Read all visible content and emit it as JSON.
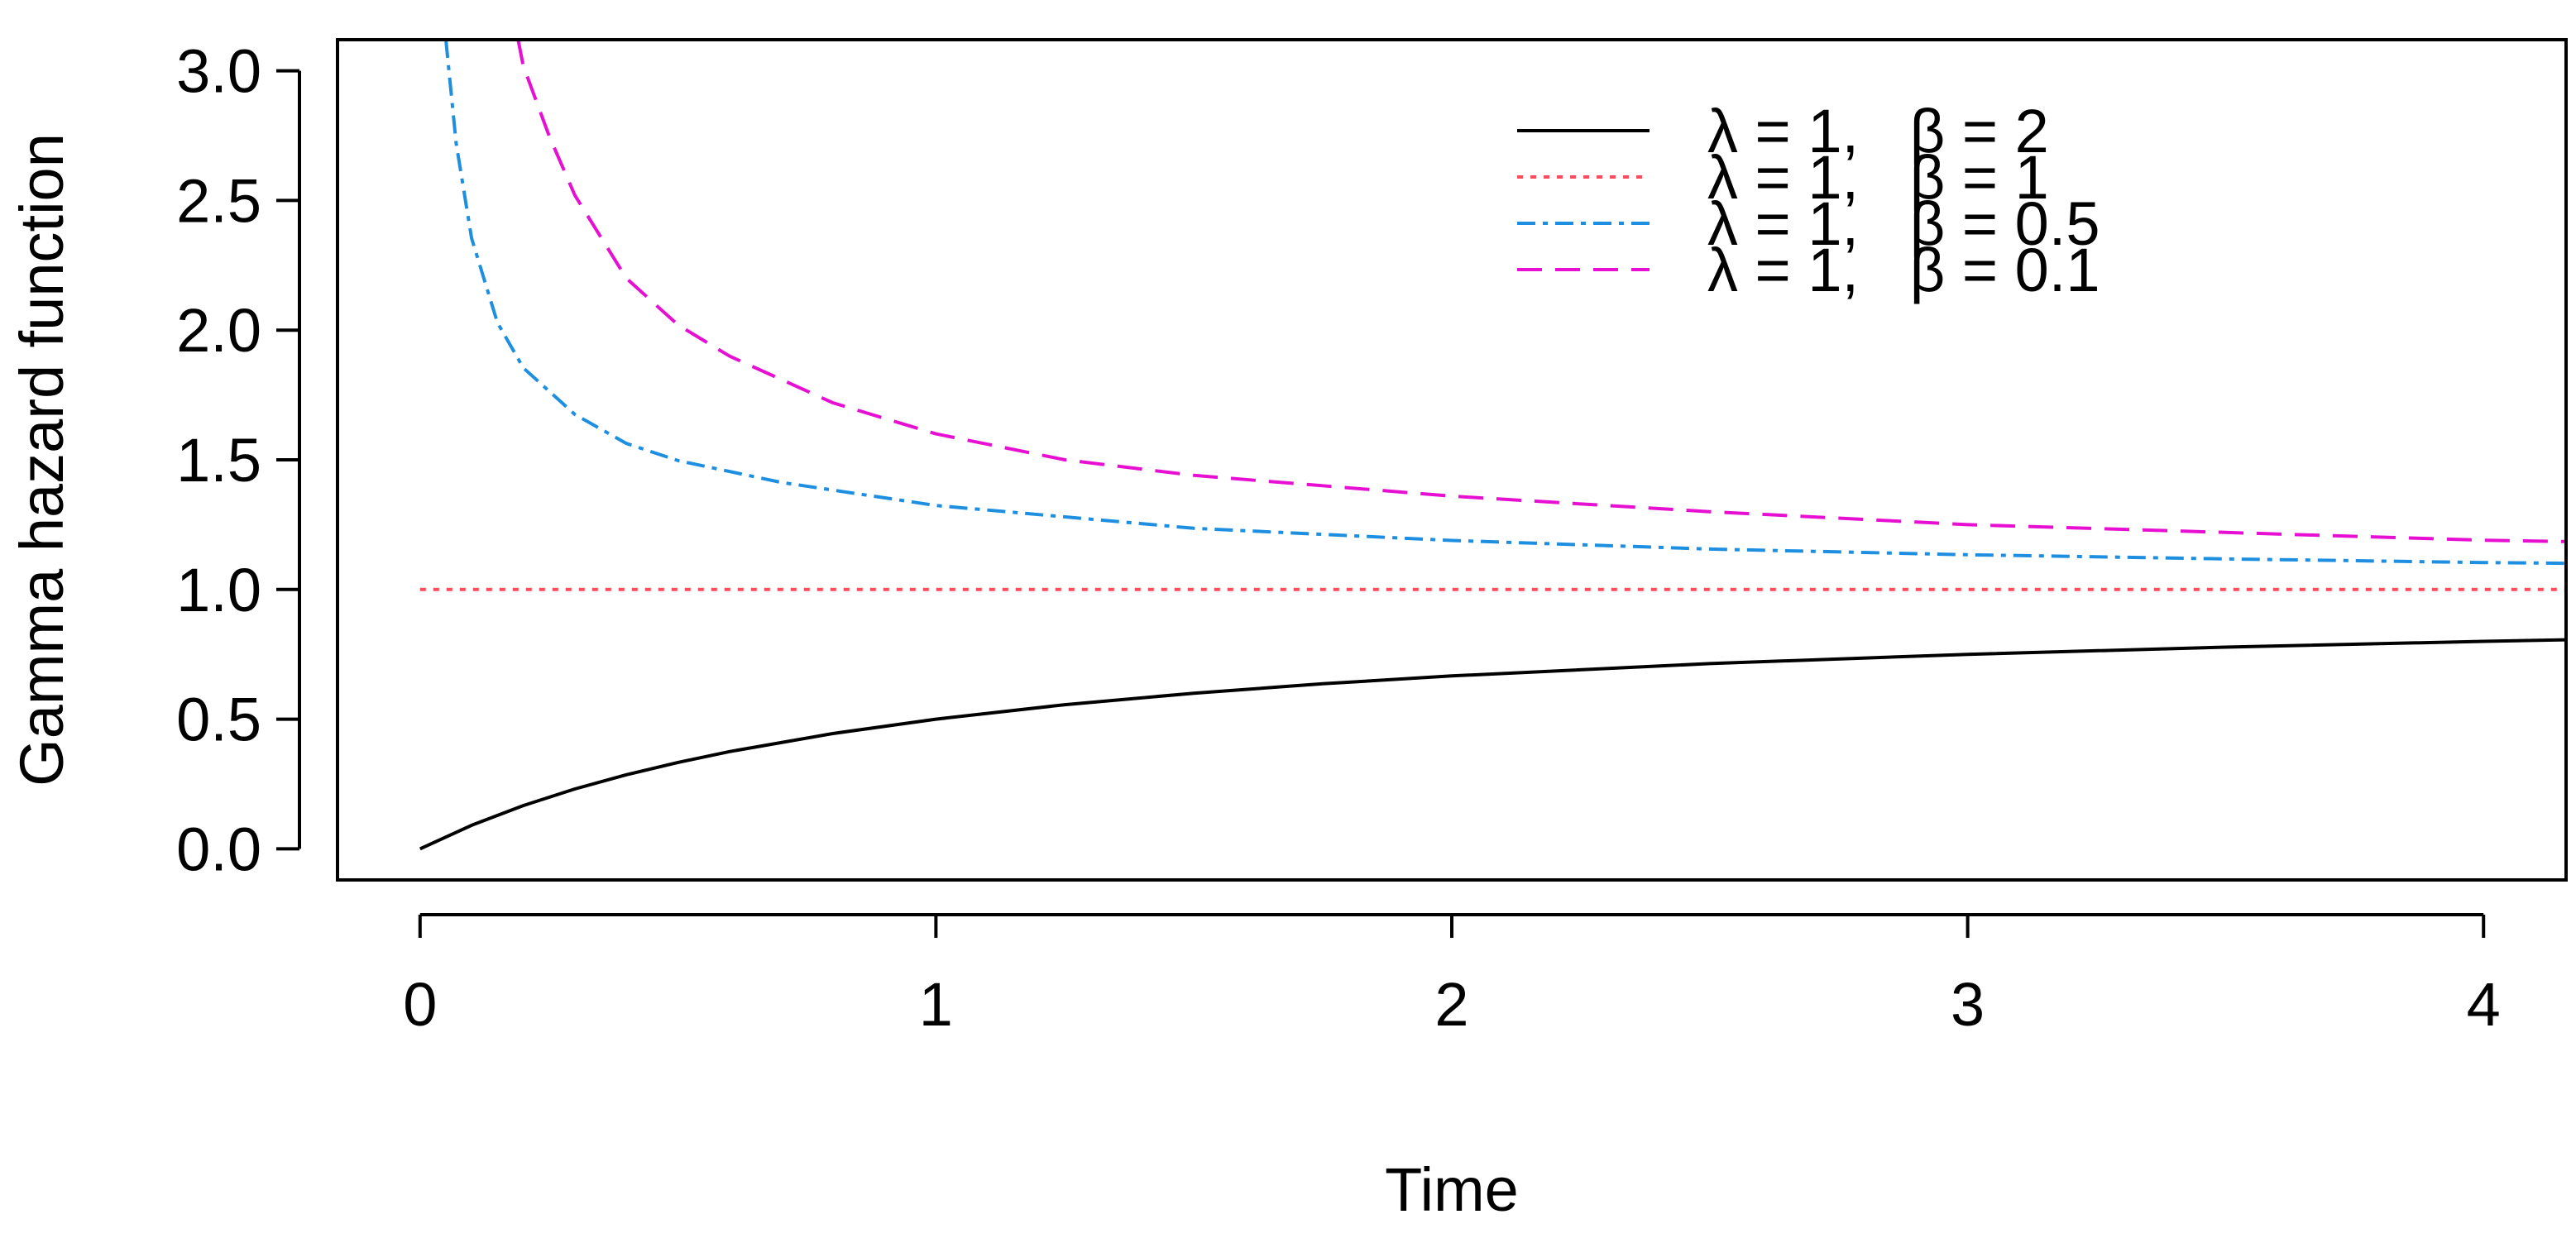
{
  "chart_data": {
    "type": "line",
    "title": "",
    "xlabel": "Time",
    "ylabel": "Gamma hazard function",
    "xlim": [
      -0.16,
      4.16
    ],
    "ylim": [
      -0.12,
      3.12
    ],
    "x_ticks": [
      {
        "value": 0,
        "label": "0"
      },
      {
        "value": 1,
        "label": "1"
      },
      {
        "value": 2,
        "label": "2"
      },
      {
        "value": 3,
        "label": "3"
      },
      {
        "value": 4,
        "label": "4"
      }
    ],
    "y_ticks": [
      {
        "value": 0.0,
        "label": "0.0"
      },
      {
        "value": 0.5,
        "label": "0.5"
      },
      {
        "value": 1.0,
        "label": "1.0"
      },
      {
        "value": 1.5,
        "label": "1.5"
      },
      {
        "value": 2.0,
        "label": "2.0"
      },
      {
        "value": 2.5,
        "label": "2.5"
      },
      {
        "value": 3.0,
        "label": "3.0"
      }
    ],
    "grid": false,
    "legend_position": "top-right",
    "series": [
      {
        "name": "λ = 1,   β = 2",
        "color": "#000000",
        "dash": "solid",
        "x": [
          0,
          0.1,
          0.2,
          0.3,
          0.4,
          0.5,
          0.6,
          0.8,
          1.0,
          1.25,
          1.5,
          1.75,
          2.0,
          2.5,
          3.0,
          3.5,
          4.0,
          4.16
        ],
        "y": [
          0,
          0.0909,
          0.1667,
          0.2308,
          0.2857,
          0.3333,
          0.375,
          0.4444,
          0.5,
          0.5556,
          0.6,
          0.6364,
          0.6667,
          0.7143,
          0.75,
          0.7778,
          0.8,
          0.8062
        ]
      },
      {
        "name": "λ = 1,   β = 1",
        "color": "#ff4c5a",
        "dash": "dotted",
        "x": [
          0,
          4.16
        ],
        "y": [
          1,
          1
        ]
      },
      {
        "name": "λ = 1,   β = 0.5",
        "color": "#1e8fe0",
        "dash": "dashdot",
        "x": [
          0.05,
          0.07,
          0.1,
          0.15,
          0.2,
          0.3,
          0.4,
          0.5,
          0.7,
          1.0,
          1.5,
          2.0,
          2.5,
          3.0,
          3.5,
          4.0,
          4.16
        ],
        "y": [
          3.12,
          2.721,
          2.354,
          2.029,
          1.855,
          1.675,
          1.563,
          1.497,
          1.413,
          1.324,
          1.236,
          1.189,
          1.156,
          1.134,
          1.118,
          1.104,
          1.101
        ]
      },
      {
        "name": "λ = 1,   β = 0.1",
        "color": "#e60fd2",
        "dash": "dashed",
        "x": [
          0.19,
          0.2,
          0.25,
          0.3,
          0.4,
          0.5,
          0.6,
          0.8,
          1.0,
          1.25,
          1.5,
          2.0,
          2.5,
          3.0,
          3.5,
          4.0,
          4.16
        ],
        "y": [
          3.12,
          3.02,
          2.75,
          2.52,
          2.2,
          2.02,
          1.9,
          1.72,
          1.6,
          1.5,
          1.44,
          1.36,
          1.3,
          1.25,
          1.22,
          1.19,
          1.185
        ]
      }
    ]
  }
}
